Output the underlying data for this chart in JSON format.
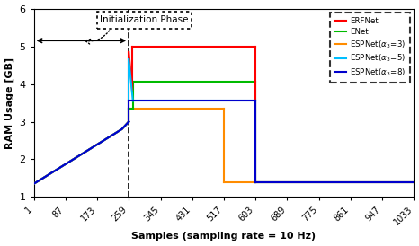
{
  "xlabel": "Samples (sampling rate = 10 Hz)",
  "ylabel": "RAM Usage [GB]",
  "xlim": [
    1,
    1033
  ],
  "ylim": [
    1,
    6
  ],
  "xticks": [
    1,
    87,
    173,
    259,
    345,
    431,
    517,
    603,
    689,
    775,
    861,
    947,
    1033
  ],
  "yticks": [
    1,
    2,
    3,
    4,
    5,
    6
  ],
  "vline_x": 259,
  "init_phase_text": "Initialization Phase",
  "legend_colors": [
    "#ff0000",
    "#00bb00",
    "#ff8c00",
    "#00bfff",
    "#0000cc"
  ],
  "legend_labels": [
    "ERFNet",
    "ENet",
    "ESPNet $\\alpha_3= 3$",
    "ESPNet $\\alpha_3= 5$",
    "ESPNet $\\alpha_3= 8$"
  ],
  "erfnet_color": "#ff0000",
  "enet_color": "#00bb00",
  "esp3_color": "#ff8c00",
  "esp5_color": "#00bfff",
  "esp8_color": "#0000cc"
}
